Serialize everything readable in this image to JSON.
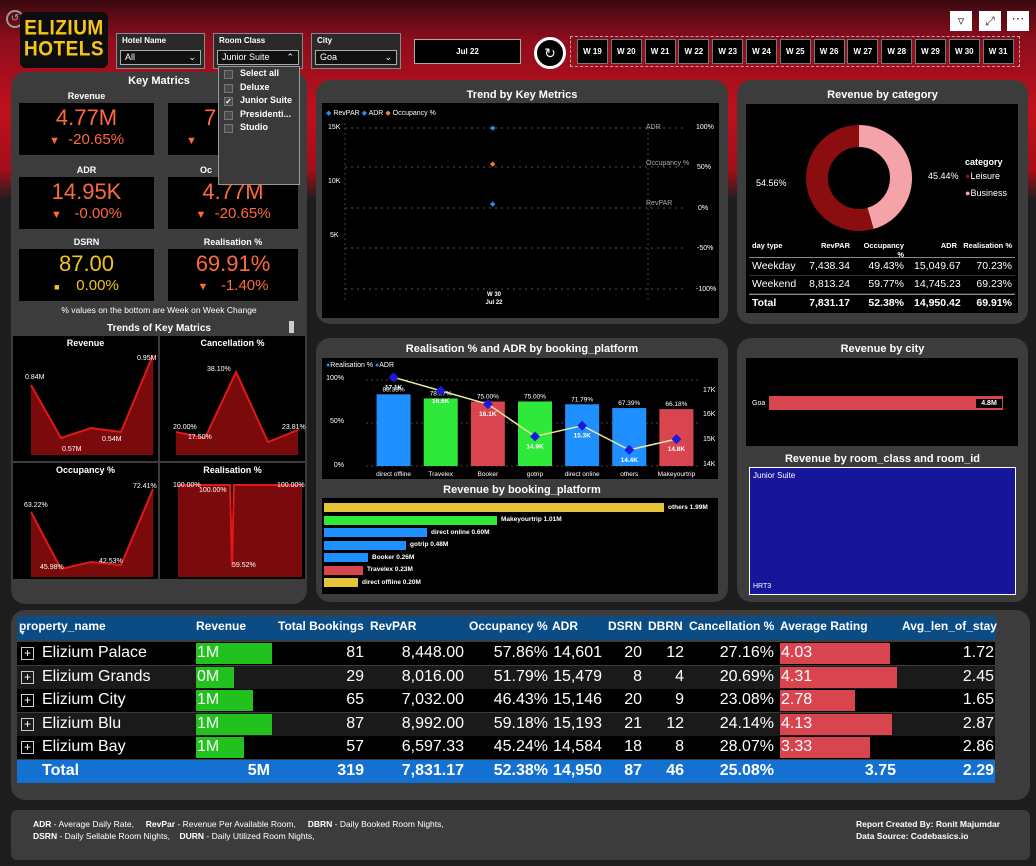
{
  "brand": {
    "line1": "ELIZIUM",
    "line2": "HOTELS"
  },
  "filters": {
    "hotel": {
      "label": "Hotel Name",
      "value": "All"
    },
    "room_class": {
      "label": "Room Class",
      "value": "Junior Suite",
      "options": [
        "Select all",
        "Deluxe",
        "Junior Suite",
        "Presidenti...",
        "Studio"
      ]
    },
    "city": {
      "label": "City",
      "value": "Goa"
    },
    "month": "Jul 22"
  },
  "weeks": [
    "W 19",
    "W 20",
    "W 21",
    "W 22",
    "W 23",
    "W 24",
    "W 25",
    "W 26",
    "W 27",
    "W 28",
    "W 29",
    "W 30",
    "W 31"
  ],
  "key_metrics": {
    "title": "Key Matrics",
    "revenue": {
      "label": "Revenue",
      "value": "4.77M",
      "change": "-20.65%"
    },
    "revpar": {
      "value": "7"
    },
    "adr": {
      "label": "ADR",
      "value": "14.95K",
      "change": "-0.00%"
    },
    "occupancy": {
      "label": "Oc",
      "value": "4.77M",
      "change": "-20.65%"
    },
    "dsrn": {
      "label": "DSRN",
      "value": "87.00",
      "change": "0.00%"
    },
    "realisation": {
      "label": "Realisation %",
      "value": "69.91%",
      "change": "-1.40%"
    },
    "note": "% values on the bottom are Week on Week Change"
  },
  "trends": {
    "title": "Trends of Key Matrics",
    "revenue": {
      "label": "Revenue",
      "v1": "0.84M",
      "v2": "0.57M",
      "v3": "0.54M",
      "v4": "0.95M"
    },
    "cancellation": {
      "label": "Cancellation %",
      "v1": "20.00%",
      "v2": "17.50%",
      "v3": "38.10%",
      "v4": "23.81%"
    },
    "occupancy": {
      "label": "Occupancy %",
      "v1": "63.22%",
      "v2": "45.98%",
      "v3": "42.53%",
      "v4": "72.41%"
    },
    "realisation": {
      "label": "Realisation %",
      "v1": "100.00%",
      "v2": "100.00%",
      "v3": "59.52%",
      "v4": "100.00%"
    }
  },
  "trend_chart": {
    "title": "Trend by Key Metrics",
    "legend": [
      "RevPAR",
      "ADR",
      "Occupancy %"
    ],
    "y_left": [
      "15K",
      "10K",
      "5K"
    ],
    "y_right": [
      "100%",
      "50%",
      "0%",
      "-50%",
      "-100%"
    ],
    "labels": {
      "adr": "ADR",
      "occ": "Occupancy %",
      "revpar": "RevPAR"
    },
    "x": "W 30",
    "x_sub": "Jul 22"
  },
  "category_chart": {
    "title": "Revenue by category",
    "legend_title": "category",
    "leisure": "Leisure",
    "business": "Business",
    "left_pct": "54.56%",
    "right_pct": "45.44%"
  },
  "day_table": {
    "headers": [
      "day type",
      "RevPAR",
      "Occupancy %",
      "ADR",
      "Realisation %"
    ],
    "rows": [
      [
        "Weekday",
        "7,438.34",
        "49.43%",
        "15,049.67",
        "70.23%"
      ],
      [
        "Weekend",
        "8,813.24",
        "59.77%",
        "14,745.23",
        "69.23%"
      ]
    ],
    "total": [
      "Total",
      "7,831.17",
      "52.38%",
      "14,950.42",
      "69.91%"
    ]
  },
  "booking_chart": {
    "title": "Realisation % and ADR by booking_platform",
    "legend": [
      "Realisation %",
      "ADR"
    ],
    "y_left": [
      "100%",
      "50%",
      "0%"
    ],
    "y_right": [
      "17K",
      "16K",
      "15K",
      "14K"
    ]
  },
  "chart_data": [
    {
      "type": "bar",
      "title": "Realisation % and ADR by booking_platform",
      "categories": [
        "direct offline",
        "Travelex",
        "Booker",
        "gotrip",
        "direct online",
        "others",
        "Makeyourtrip"
      ],
      "series": [
        {
          "name": "Realisation %",
          "values": [
            83.33,
            78.57,
            75.0,
            75.0,
            71.79,
            67.39,
            66.18
          ]
        },
        {
          "name": "ADR",
          "values": [
            17.1,
            16.6,
            16.1,
            14.9,
            15.3,
            14.4,
            14.8
          ]
        }
      ],
      "data_labels": [
        "17.1K",
        "16.6K",
        "16.1K",
        "14.9K",
        "15.3K",
        "14.4K",
        "14.8K"
      ],
      "pct_labels": [
        "83.33%",
        "78.57%",
        "75.00%",
        "75.00%",
        "71.79%",
        "67.39%",
        "66.18%"
      ],
      "colors": [
        "#1e90ff",
        "#2ee83a",
        "#d8454f",
        "#2ee83a",
        "#1e90ff",
        "#1e90ff",
        "#d8454f"
      ]
    },
    {
      "type": "bar",
      "title": "Revenue by booking_platform",
      "categories": [
        "others",
        "Makeyourtrip",
        "direct online",
        "gotrip",
        "Booker",
        "Travelex",
        "direct offline"
      ],
      "values": [
        1.99,
        1.01,
        0.6,
        0.48,
        0.26,
        0.23,
        0.2
      ],
      "labels": [
        "others 1.99M",
        "Makeyourtrip 1.01M",
        "direct online 0.60M",
        "gotrip 0.48M",
        "Booker 0.26M",
        "Travelex 0.23M",
        "direct offline 0.20M"
      ],
      "colors": [
        "#e6c43a",
        "#2ee83a",
        "#1e90ff",
        "#1e90ff",
        "#1e90ff",
        "#d8454f",
        "#e6c43a"
      ]
    },
    {
      "type": "pie",
      "title": "Revenue by category",
      "categories": [
        "Leisure",
        "Business"
      ],
      "values": [
        54.56,
        45.44
      ],
      "colors": [
        "#8a0e10",
        "#f4a3a8"
      ]
    },
    {
      "type": "bar",
      "title": "Revenue by city",
      "categories": [
        "Goa"
      ],
      "values": [
        4.8
      ],
      "labels": [
        "4.8M"
      ]
    }
  ],
  "city_chart": {
    "title": "Revenue by city",
    "city": "Goa",
    "value": "4.8M"
  },
  "treemap": {
    "title": "Revenue by room_class and room_id",
    "label": "Junior Suite",
    "sub": "HRT3"
  },
  "property_table": {
    "headers": [
      "property_name",
      "Revenue",
      "Total Bookings",
      "RevPAR",
      "Occupancy %",
      "ADR",
      "DSRN",
      "DBRN",
      "Cancellation %",
      "Average Rating",
      "Avg_len_of_stay"
    ],
    "rows": [
      {
        "name": "Elizium Palace",
        "rev": "1M",
        "revbar": 1.0,
        "book": "81",
        "revpar": "8,448.00",
        "occ": "57.86%",
        "adr": "14,601",
        "dsrn": "20",
        "dbrn": "12",
        "canc": "27.16%",
        "rating": "4.03",
        "ratingbar": 0.74,
        "stay": "1.72"
      },
      {
        "name": "Elizium Grands",
        "rev": "0M",
        "revbar": 0.5,
        "book": "29",
        "revpar": "8,016.00",
        "occ": "51.79%",
        "adr": "15,479",
        "dsrn": "8",
        "dbrn": "4",
        "canc": "20.69%",
        "rating": "4.31",
        "ratingbar": 0.79,
        "stay": "2.45"
      },
      {
        "name": "Elizium City",
        "rev": "1M",
        "revbar": 0.75,
        "book": "65",
        "revpar": "7,032.00",
        "occ": "46.43%",
        "adr": "15,146",
        "dsrn": "20",
        "dbrn": "9",
        "canc": "23.08%",
        "rating": "2.78",
        "ratingbar": 0.51,
        "stay": "1.65"
      },
      {
        "name": "Elizium Blu",
        "rev": "1M",
        "revbar": 1.0,
        "book": "87",
        "revpar": "8,992.00",
        "occ": "59.18%",
        "adr": "15,193",
        "dsrn": "21",
        "dbrn": "12",
        "canc": "24.14%",
        "rating": "4.13",
        "ratingbar": 0.76,
        "stay": "2.87"
      },
      {
        "name": "Elizium Bay",
        "rev": "1M",
        "revbar": 0.63,
        "book": "57",
        "revpar": "6,597.33",
        "occ": "45.24%",
        "adr": "14,584",
        "dsrn": "18",
        "dbrn": "8",
        "canc": "28.07%",
        "rating": "3.33",
        "ratingbar": 0.61,
        "stay": "2.86"
      }
    ],
    "total": {
      "name": "Total",
      "rev": "5M",
      "book": "319",
      "revpar": "7,831.17",
      "occ": "52.38%",
      "adr": "14,950",
      "dsrn": "87",
      "dbrn": "46",
      "canc": "25.08%",
      "rating": "3.75",
      "stay": "2.29"
    }
  },
  "footer": {
    "l1a": "ADR",
    "l1b": " - Average Daily Rate,",
    "l1c": "RevPar",
    "l1d": " - Revenue Per Available Room,",
    "l1e": "DBRN",
    "l1f": " - Daily Booked Room Nights,",
    "l2a": "DSRN",
    "l2b": " - Daily Sellable Room Nights,",
    "l2c": "DURN",
    "l2d": " - Daily Utilized Room Nights,",
    "r1a": "Report Created By: ",
    "r1b": "Ronit Majumdar",
    "r2a": "Data Source: ",
    "r2b": "Codebasics.io"
  }
}
